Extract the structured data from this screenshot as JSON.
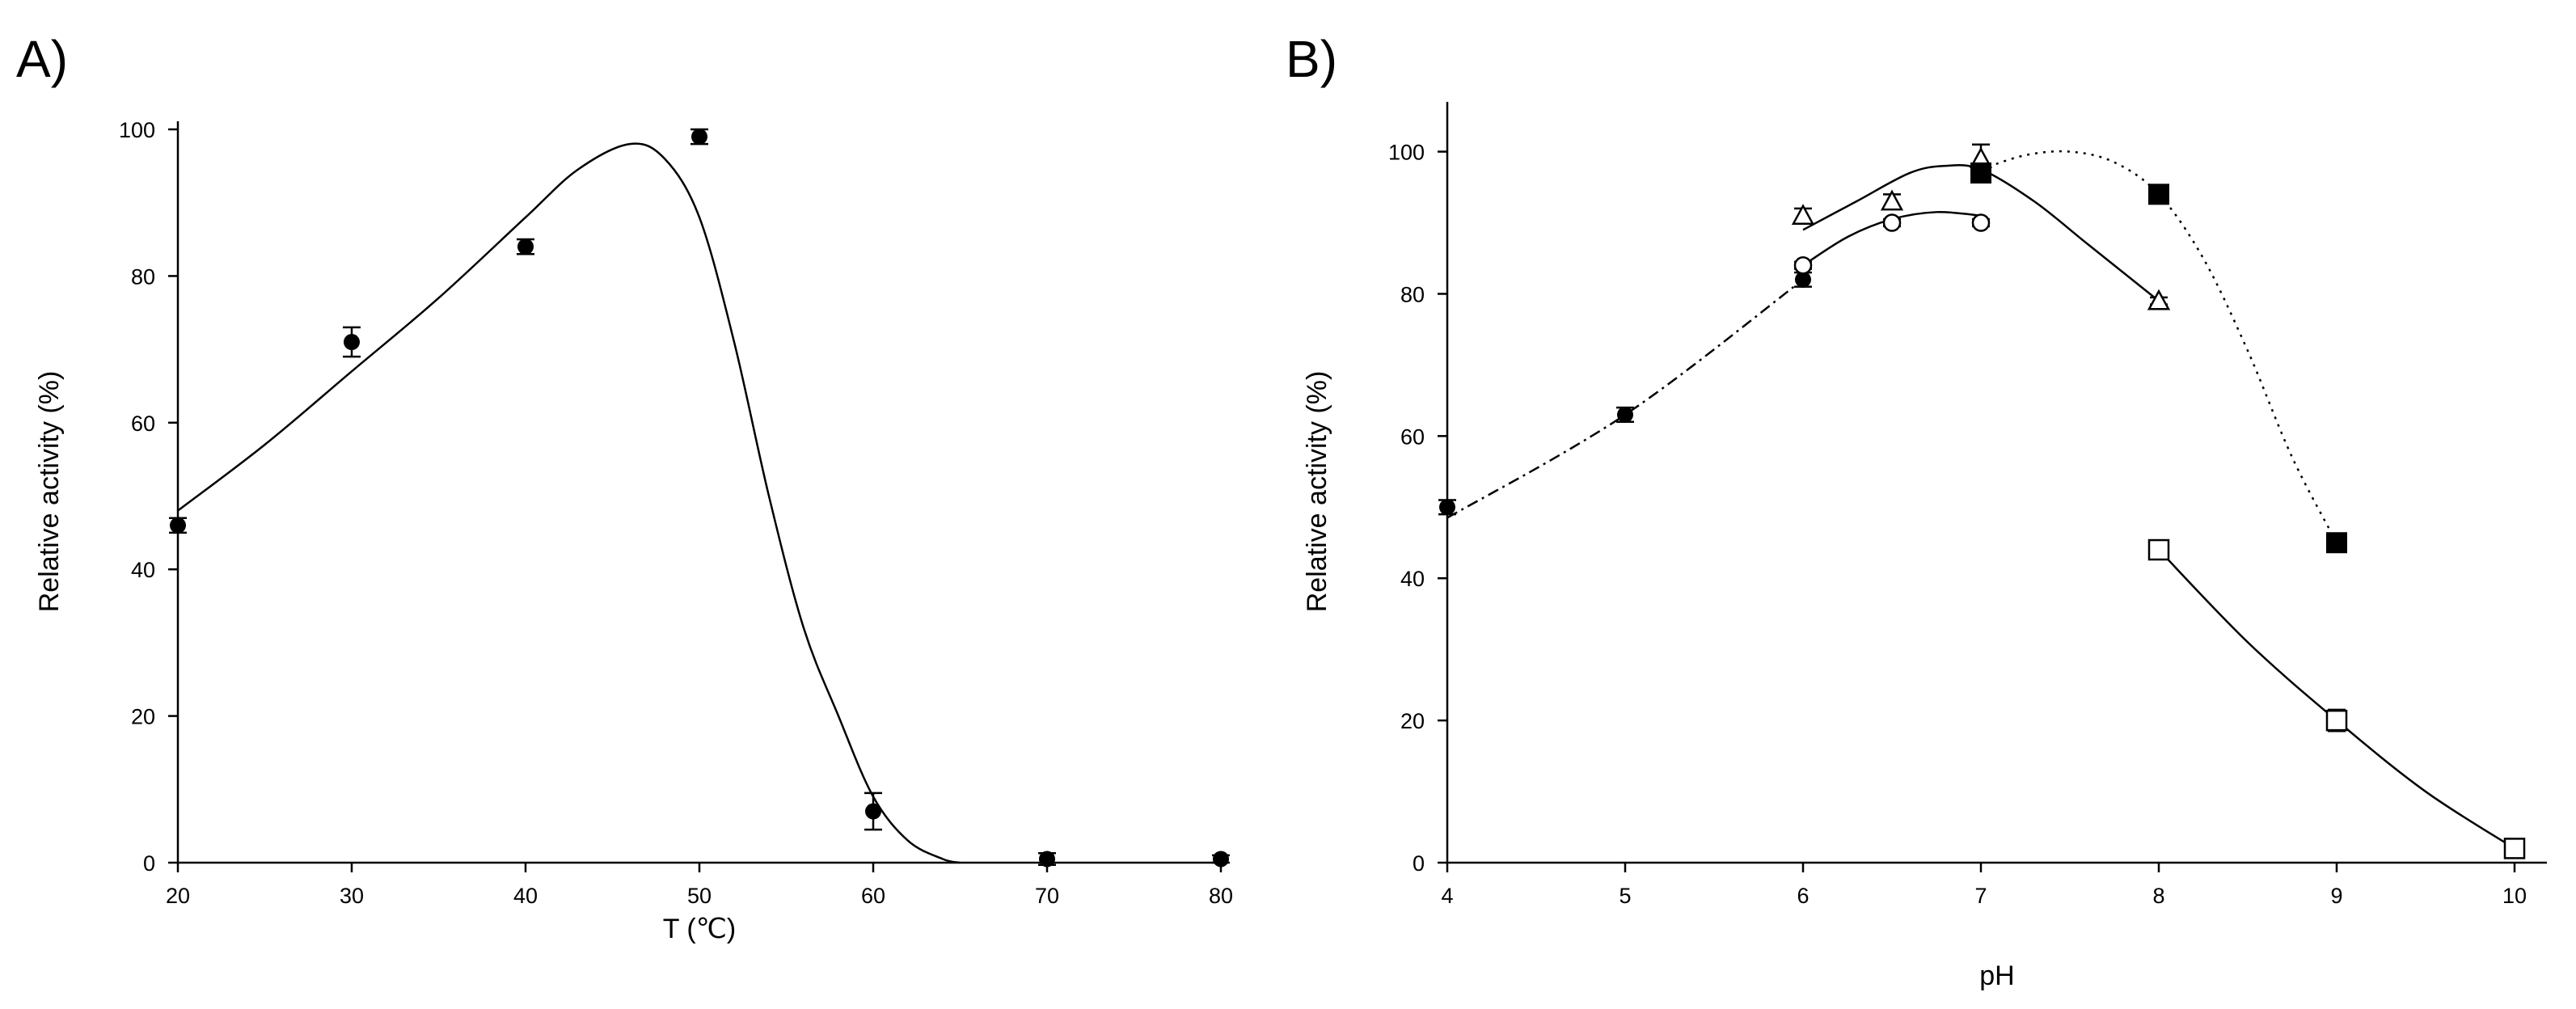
{
  "chart_data": [
    {
      "panel": "A)",
      "type": "scatter",
      "xlabel": "T (℃)",
      "ylabel": "Relative activity (%)",
      "xlim": [
        20,
        80
      ],
      "ylim": [
        0,
        100
      ],
      "xticks": [
        "20",
        "30",
        "40",
        "50",
        "60",
        "70",
        "80"
      ],
      "yticks": [
        "0",
        "20",
        "40",
        "60",
        "80",
        "100"
      ],
      "series": [
        {
          "marker": "filled-circle",
          "x": [
            20,
            30,
            40,
            50,
            60,
            70,
            80
          ],
          "y": [
            46,
            71,
            84,
            99,
            7,
            0.5,
            0.5
          ],
          "err": [
            1,
            2,
            1,
            1,
            2.5,
            0.8,
            0.5
          ]
        }
      ],
      "fit_curve": {
        "x": [
          20,
          25,
          30,
          35,
          40,
          43,
          46,
          48,
          50,
          52,
          54,
          56,
          58,
          60,
          62,
          64,
          65
        ],
        "y": [
          48,
          57,
          67,
          77,
          88,
          94.5,
          98,
          96,
          88,
          71,
          50,
          32,
          20,
          9,
          3,
          0.5,
          0
        ]
      }
    },
    {
      "panel": "B)",
      "type": "line",
      "xlabel": "pH",
      "ylabel": "Relative activity (%)",
      "xlim": [
        4,
        10
      ],
      "ylim": [
        0,
        107
      ],
      "xticks": [
        "4",
        "5",
        "6",
        "7",
        "8",
        "9",
        "10"
      ],
      "yticks": [
        "0",
        "20",
        "40",
        "60",
        "80",
        "100"
      ],
      "series": [
        {
          "marker": "filled-circle",
          "line": "dash-dot",
          "x": [
            4,
            5,
            6
          ],
          "y": [
            50,
            63,
            82
          ],
          "err": [
            1,
            1,
            1
          ],
          "curve": {
            "x": [
              4,
              5,
              6
            ],
            "y": [
              48.5,
              63,
              82
            ]
          }
        },
        {
          "marker": "open-circle",
          "line": "solid",
          "x": [
            6,
            6.5,
            7
          ],
          "y": [
            84,
            90,
            90
          ],
          "err": [
            0.5,
            0.5,
            0.5
          ],
          "curve": {
            "x": [
              6,
              6.25,
              6.5,
              6.75,
              7
            ],
            "y": [
              84,
              88,
              90.5,
              91.5,
              91
            ]
          }
        },
        {
          "marker": "open-triangle",
          "line": "solid",
          "x": [
            6,
            6.5,
            7,
            8
          ],
          "y": [
            91,
            93,
            99,
            79
          ],
          "err": [
            1,
            1,
            2,
            0.5
          ],
          "curve": {
            "x": [
              6,
              6.3,
              6.6,
              6.8,
              7,
              7.3,
              7.6,
              8
            ],
            "y": [
              89,
              93,
              97,
              98,
              97.5,
              93,
              87,
              79
            ]
          }
        },
        {
          "marker": "filled-square",
          "line": "dotted",
          "x": [
            7,
            8,
            9
          ],
          "y": [
            97,
            94,
            45
          ],
          "err": [
            1,
            1,
            1
          ],
          "curve": {
            "x": [
              7,
              7.25,
              7.5,
              7.75,
              8,
              8.25,
              8.5,
              8.75,
              9
            ],
            "y": [
              97.5,
              99.5,
              100,
              98.5,
              94,
              85,
              72,
              57,
              45
            ]
          }
        },
        {
          "marker": "open-square",
          "line": "solid",
          "x": [
            8,
            9,
            10
          ],
          "y": [
            44,
            20,
            2
          ],
          "err": [
            1,
            1.5,
            0.5
          ],
          "curve": {
            "x": [
              8,
              8.5,
              9,
              9.5,
              10
            ],
            "y": [
              44,
              31,
              20,
              10,
              2
            ]
          }
        }
      ]
    }
  ]
}
